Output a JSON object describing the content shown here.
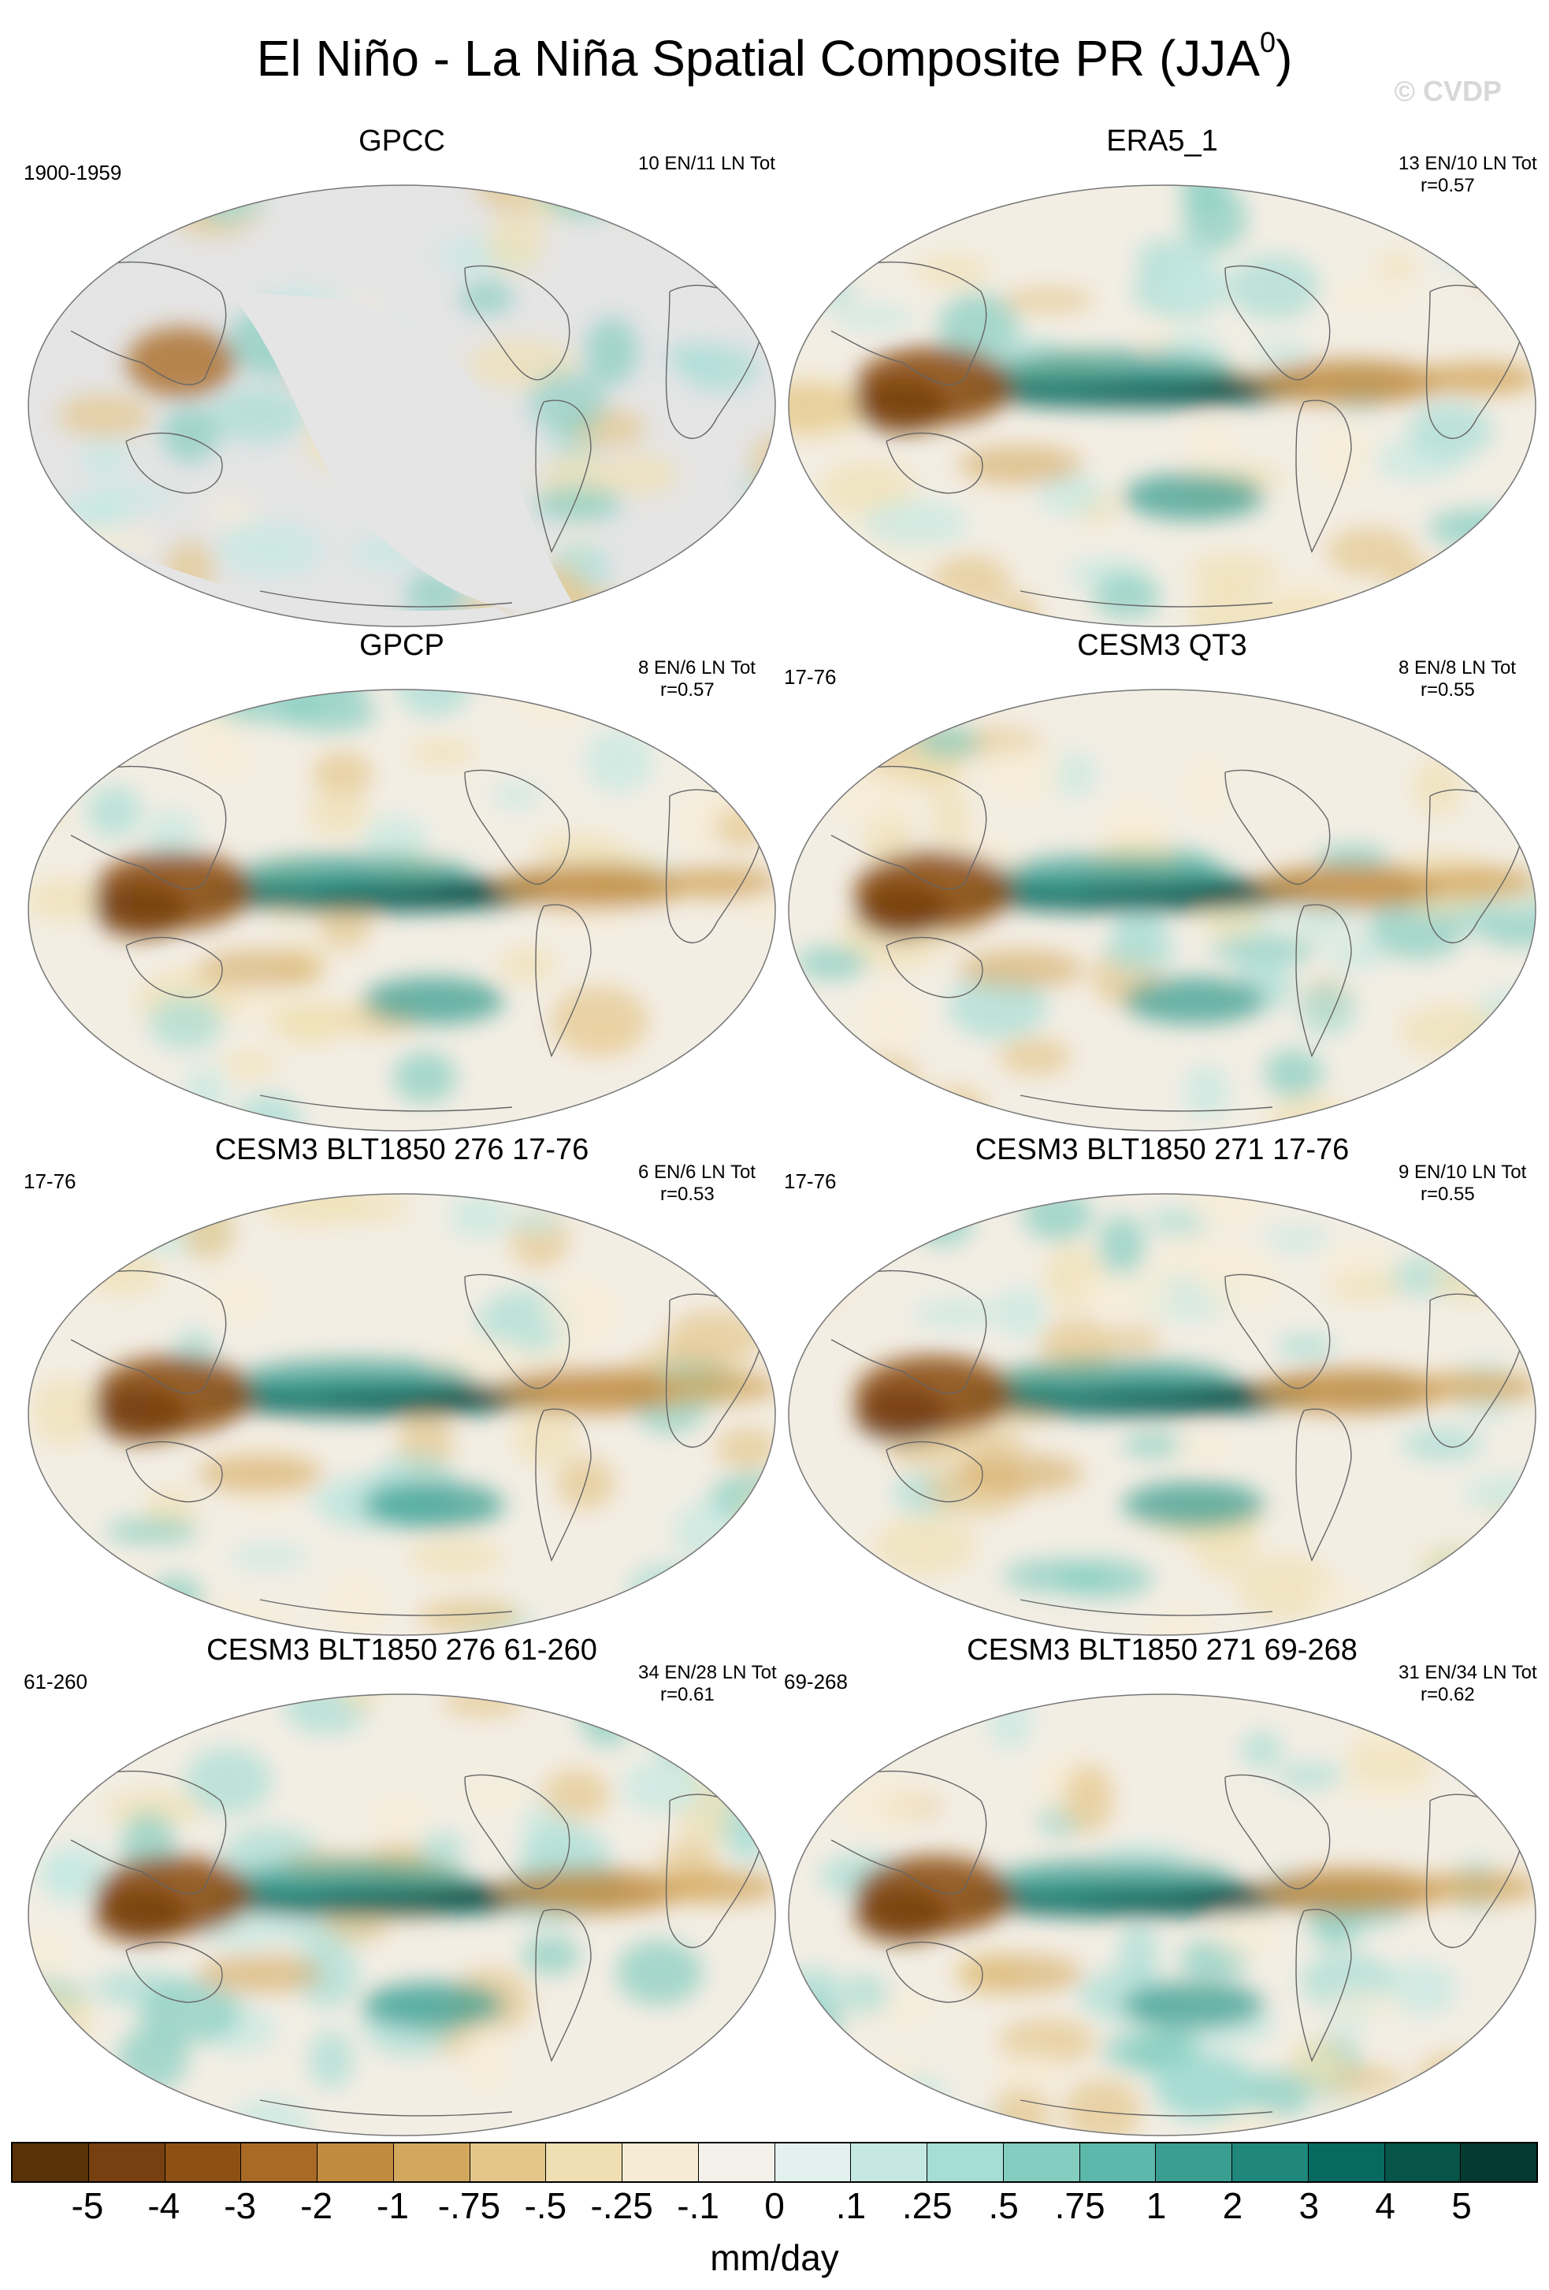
{
  "title": "El Niño - La Niña Spatial Composite PR (JJA",
  "title_sup": "0",
  "title_end": ")",
  "watermark": "© CVDP",
  "panels": [
    {
      "title": "GPCC",
      "left_label": "1900-1959",
      "stats_1": "10 EN/11 LN Tot",
      "stats_2": "",
      "land_only": true
    },
    {
      "title": "ERA5_1",
      "left_label": "",
      "stats_1": "13 EN/10 LN Tot",
      "stats_2": "r=0.57",
      "land_only": false
    },
    {
      "title": "GPCP",
      "left_label": "",
      "stats_1": "8 EN/6 LN Tot",
      "stats_2": "r=0.57",
      "land_only": false
    },
    {
      "title": "CESM3 QT3",
      "left_label": "17-76",
      "stats_1": "8 EN/8 LN Tot",
      "stats_2": "r=0.55",
      "land_only": false
    },
    {
      "title": "CESM3 BLT1850 276 17-76",
      "left_label": "17-76",
      "stats_1": "6 EN/6 LN Tot",
      "stats_2": "r=0.53",
      "land_only": false
    },
    {
      "title": "CESM3 BLT1850 271 17-76",
      "left_label": "17-76",
      "stats_1": "9 EN/10 LN Tot",
      "stats_2": "r=0.55",
      "land_only": false
    },
    {
      "title": "CESM3 BLT1850 276 61-260",
      "left_label": "61-260",
      "stats_1": "34 EN/28 LN Tot",
      "stats_2": "r=0.61",
      "land_only": false
    },
    {
      "title": "CESM3 BLT1850 271 69-268",
      "left_label": "69-268",
      "stats_1": "31 EN/34 LN Tot",
      "stats_2": "r=0.62",
      "land_only": false
    }
  ],
  "colorbar": {
    "colors": [
      "#5a3207",
      "#774010",
      "#8e5114",
      "#a96a26",
      "#c08b3e",
      "#d3a85e",
      "#e4c68b",
      "#f0dfb2",
      "#f6ecd5",
      "#f4f1ea",
      "#e3f1ee",
      "#c5e8e2",
      "#a6ddd5",
      "#84cdc1",
      "#5cb8aa",
      "#3a9e92",
      "#1f877b",
      "#07695f",
      "#075449",
      "#053a32"
    ],
    "tick_labels": [
      "-5",
      "-4",
      "-3",
      "-2",
      "-1",
      "-.75",
      "-.5",
      "-.25",
      "-.1",
      "0",
      ".1",
      ".25",
      ".5",
      ".75",
      "1",
      "2",
      "3",
      "4",
      "5"
    ],
    "units": "mm/day"
  }
}
